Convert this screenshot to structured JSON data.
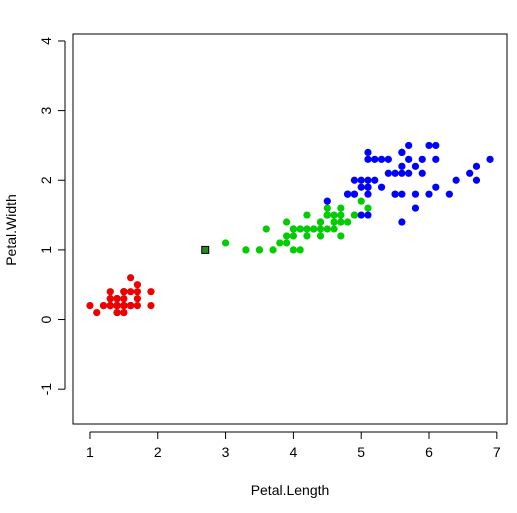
{
  "chart_data": {
    "type": "scatter",
    "xlabel": "Petal.Length",
    "ylabel": "Petal.Width",
    "xlim": [
      0.75,
      7.15
    ],
    "ylim": [
      -1.5,
      4.1
    ],
    "x_ticks": [
      1,
      2,
      3,
      4,
      5,
      6,
      7
    ],
    "y_ticks": [
      -1,
      0,
      1,
      2,
      3,
      4
    ],
    "grid": false,
    "legend": "none",
    "series": [
      {
        "color": "#ee0000",
        "marker": "circle",
        "points": [
          [
            1.4,
            0.2
          ],
          [
            1.4,
            0.2
          ],
          [
            1.3,
            0.2
          ],
          [
            1.5,
            0.2
          ],
          [
            1.4,
            0.2
          ],
          [
            1.7,
            0.4
          ],
          [
            1.4,
            0.3
          ],
          [
            1.5,
            0.2
          ],
          [
            1.4,
            0.2
          ],
          [
            1.5,
            0.1
          ],
          [
            1.5,
            0.2
          ],
          [
            1.6,
            0.2
          ],
          [
            1.4,
            0.1
          ],
          [
            1.1,
            0.1
          ],
          [
            1.2,
            0.2
          ],
          [
            1.5,
            0.4
          ],
          [
            1.3,
            0.4
          ],
          [
            1.4,
            0.3
          ],
          [
            1.7,
            0.3
          ],
          [
            1.5,
            0.3
          ],
          [
            1.7,
            0.2
          ],
          [
            1.5,
            0.4
          ],
          [
            1.0,
            0.2
          ],
          [
            1.7,
            0.5
          ],
          [
            1.9,
            0.2
          ],
          [
            1.6,
            0.2
          ],
          [
            1.6,
            0.4
          ],
          [
            1.5,
            0.2
          ],
          [
            1.4,
            0.2
          ],
          [
            1.6,
            0.2
          ],
          [
            1.6,
            0.2
          ],
          [
            1.5,
            0.4
          ],
          [
            1.5,
            0.1
          ],
          [
            1.4,
            0.2
          ],
          [
            1.5,
            0.2
          ],
          [
            1.2,
            0.2
          ],
          [
            1.3,
            0.2
          ],
          [
            1.4,
            0.1
          ],
          [
            1.3,
            0.2
          ],
          [
            1.5,
            0.2
          ],
          [
            1.3,
            0.3
          ],
          [
            1.3,
            0.3
          ],
          [
            1.3,
            0.2
          ],
          [
            1.6,
            0.6
          ],
          [
            1.9,
            0.4
          ],
          [
            1.4,
            0.3
          ],
          [
            1.6,
            0.2
          ],
          [
            1.4,
            0.2
          ],
          [
            1.5,
            0.2
          ],
          [
            1.4,
            0.2
          ]
        ]
      },
      {
        "color": "#00cd00",
        "marker": "circle",
        "points": [
          [
            4.7,
            1.4
          ],
          [
            4.5,
            1.5
          ],
          [
            4.9,
            1.5
          ],
          [
            4.0,
            1.3
          ],
          [
            4.6,
            1.5
          ],
          [
            4.5,
            1.3
          ],
          [
            4.7,
            1.6
          ],
          [
            3.3,
            1.0
          ],
          [
            4.6,
            1.3
          ],
          [
            3.9,
            1.4
          ],
          [
            3.5,
            1.0
          ],
          [
            4.2,
            1.5
          ],
          [
            4.0,
            1.0
          ],
          [
            4.7,
            1.4
          ],
          [
            3.6,
            1.3
          ],
          [
            4.4,
            1.4
          ],
          [
            4.5,
            1.5
          ],
          [
            4.1,
            1.0
          ],
          [
            4.5,
            1.5
          ],
          [
            3.9,
            1.1
          ],
          [
            4.8,
            1.8
          ],
          [
            4.0,
            1.3
          ],
          [
            4.9,
            1.5
          ],
          [
            4.7,
            1.2
          ],
          [
            4.3,
            1.3
          ],
          [
            4.4,
            1.4
          ],
          [
            4.8,
            1.4
          ],
          [
            5.0,
            1.7
          ],
          [
            4.5,
            1.5
          ],
          [
            3.5,
            1.0
          ],
          [
            3.8,
            1.1
          ],
          [
            3.7,
            1.0
          ],
          [
            3.9,
            1.2
          ],
          [
            5.1,
            1.6
          ],
          [
            4.5,
            1.5
          ],
          [
            4.5,
            1.6
          ],
          [
            4.7,
            1.5
          ],
          [
            4.4,
            1.3
          ],
          [
            4.1,
            1.3
          ],
          [
            4.0,
            1.3
          ],
          [
            4.4,
            1.2
          ],
          [
            4.6,
            1.4
          ],
          [
            4.0,
            1.2
          ],
          [
            3.3,
            1.0
          ],
          [
            4.2,
            1.3
          ],
          [
            4.2,
            1.2
          ],
          [
            4.2,
            1.3
          ],
          [
            4.3,
            1.3
          ],
          [
            3.0,
            1.1
          ],
          [
            4.1,
            1.3
          ]
        ]
      },
      {
        "color": "#0000ff",
        "marker": "circle",
        "points": [
          [
            6.0,
            2.5
          ],
          [
            5.1,
            1.9
          ],
          [
            5.9,
            2.1
          ],
          [
            5.6,
            1.8
          ],
          [
            5.8,
            2.2
          ],
          [
            6.6,
            2.1
          ],
          [
            4.5,
            1.7
          ],
          [
            6.3,
            1.8
          ],
          [
            5.8,
            1.8
          ],
          [
            6.1,
            2.5
          ],
          [
            5.1,
            2.0
          ],
          [
            5.3,
            1.9
          ],
          [
            5.5,
            2.1
          ],
          [
            5.0,
            2.0
          ],
          [
            5.1,
            2.4
          ],
          [
            5.3,
            2.3
          ],
          [
            5.5,
            1.8
          ],
          [
            6.7,
            2.2
          ],
          [
            6.9,
            2.3
          ],
          [
            5.0,
            1.5
          ],
          [
            5.7,
            2.3
          ],
          [
            4.9,
            2.0
          ],
          [
            6.7,
            2.0
          ],
          [
            4.9,
            1.8
          ],
          [
            5.7,
            2.1
          ],
          [
            6.0,
            1.8
          ],
          [
            4.8,
            1.8
          ],
          [
            4.9,
            1.8
          ],
          [
            5.6,
            2.1
          ],
          [
            5.8,
            1.6
          ],
          [
            6.1,
            1.9
          ],
          [
            6.4,
            2.0
          ],
          [
            5.6,
            2.2
          ],
          [
            5.1,
            1.5
          ],
          [
            5.6,
            1.4
          ],
          [
            6.1,
            2.3
          ],
          [
            5.6,
            2.4
          ],
          [
            5.5,
            1.8
          ],
          [
            4.8,
            1.8
          ],
          [
            5.4,
            2.1
          ],
          [
            5.6,
            2.4
          ],
          [
            5.1,
            2.3
          ],
          [
            5.1,
            1.9
          ],
          [
            5.9,
            2.3
          ],
          [
            5.7,
            2.5
          ],
          [
            5.2,
            2.3
          ],
          [
            5.0,
            1.9
          ],
          [
            5.2,
            2.0
          ],
          [
            5.4,
            2.3
          ],
          [
            5.1,
            1.8
          ]
        ]
      },
      {
        "color": "#228b22",
        "marker": "square",
        "points": [
          [
            2.7,
            1.0
          ]
        ]
      }
    ]
  }
}
